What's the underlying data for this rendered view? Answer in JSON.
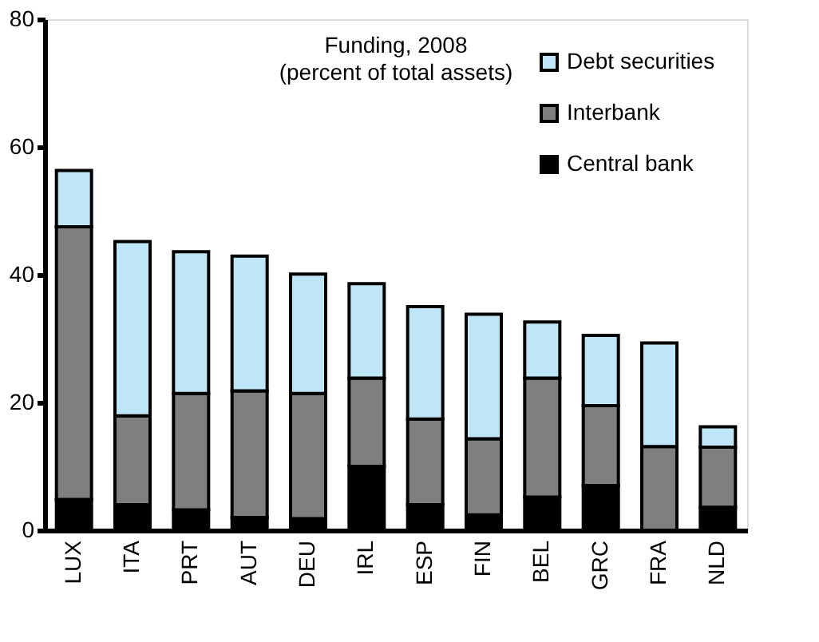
{
  "chart_data": {
    "type": "bar",
    "stacked": true,
    "title": "Funding, 2008",
    "subtitle": "(percent of total assets)",
    "categories": [
      "LUX",
      "ITA",
      "PRT",
      "AUT",
      "DEU",
      "IRL",
      "ESP",
      "FIN",
      "BEL",
      "GRC",
      "FRA",
      "NLD"
    ],
    "series": [
      {
        "name": "Central bank",
        "color": "#000000",
        "values": [
          4.8,
          4,
          3.2,
          2,
          1.8,
          10,
          4,
          2.4,
          5.2,
          7,
          0,
          3.6
        ]
      },
      {
        "name": "Interbank",
        "color": "#7f7f7f",
        "values": [
          42.7,
          13.9,
          18.2,
          19.8,
          19.6,
          13.8,
          13.4,
          11.9,
          18.6,
          12.5,
          13.1,
          9.4
        ]
      },
      {
        "name": "Debt securities",
        "color": "#bfe6f7",
        "values": [
          8.8,
          27.3,
          22.2,
          21.1,
          18.7,
          14.8,
          17.6,
          19.5,
          8.8,
          11,
          16.2,
          3.2
        ]
      }
    ],
    "ylim": [
      0,
      80
    ],
    "yticks": [
      0,
      20,
      40,
      60,
      80
    ],
    "grid": false,
    "legend": "top right"
  }
}
